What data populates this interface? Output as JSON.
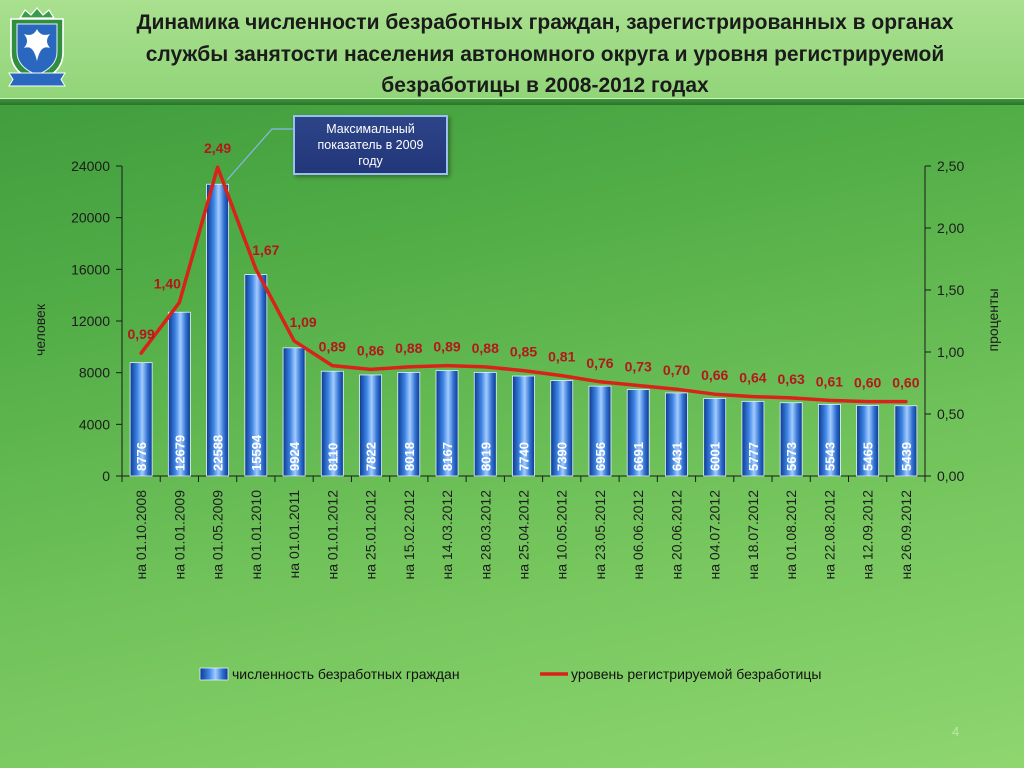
{
  "header": {
    "logo_icon": "yugra-coat-of-arms-logo"
  },
  "chart_data": {
    "type": "bar",
    "title": [
      "Динамика численности безработных граждан, зарегистрированных в органах",
      "службы занятости населения автономного округа и уровня регистрируемой",
      "безработицы в 2008-2012 годах"
    ],
    "categories": [
      "на 01.10.2008",
      "на 01.01.2009",
      "на 01.05.2009",
      "на 01.01.2010",
      "на 01.01.2011",
      "на 01.01.2012",
      "на 25.01.2012",
      "на 15.02.2012",
      "на 14.03.2012",
      "на 28.03.2012",
      "на 25.04.2012",
      "на 10.05.2012",
      "на 23.05.2012",
      "на 06.06.2012",
      "на 20.06.2012",
      "на 04.07.2012",
      "на 18.07.2012",
      "на 01.08.2012",
      "на 22.08.2012",
      "на 12.09.2012",
      "на 26.09.2012"
    ],
    "series": [
      {
        "name": "численность безработных граждан",
        "type": "bar",
        "axis": "left",
        "values": [
          8776,
          12679,
          22588,
          15594,
          9924,
          8110,
          7822,
          8018,
          8167,
          8019,
          7740,
          7390,
          6956,
          6691,
          6431,
          6001,
          5777,
          5673,
          5543,
          5465,
          5439
        ]
      },
      {
        "name": "уровень регистрируемой безработицы",
        "type": "line",
        "axis": "right",
        "values": [
          0.99,
          1.4,
          2.49,
          1.67,
          1.09,
          0.89,
          0.86,
          0.88,
          0.89,
          0.88,
          0.85,
          0.81,
          0.76,
          0.73,
          0.7,
          0.66,
          0.64,
          0.63,
          0.61,
          0.6,
          0.6
        ],
        "labels": [
          "0,99",
          "1,40",
          "2,49",
          "1,67",
          "1,09",
          "0,89",
          "0,86",
          "0,88",
          "0,89",
          "0,88",
          "0,85",
          "0,81",
          "0,76",
          "0,73",
          "0,70",
          "0,66",
          "0,64",
          "0,63",
          "0,61",
          "0,60",
          "0,60"
        ]
      }
    ],
    "ylabel": "человек",
    "y2label": "проценты",
    "ylim": [
      0,
      24000
    ],
    "y2lim": [
      0,
      2.5
    ],
    "yticks": [
      "0",
      "4000",
      "8000",
      "12000",
      "16000",
      "20000",
      "24000"
    ],
    "y2ticks": [
      "0,00",
      "0,50",
      "1,00",
      "1,50",
      "2,00",
      "2,50"
    ],
    "grid": false,
    "legend_position": "bottom",
    "annotations": [
      {
        "text": "Максимальный показатель в 2009 году"
      }
    ],
    "colors": {
      "bar": "#2f6fd0",
      "line": "#d8231a",
      "line_label": "#b3181b",
      "bar_label": "#ffffff",
      "callout": "#22377a"
    }
  },
  "page_number": "4"
}
